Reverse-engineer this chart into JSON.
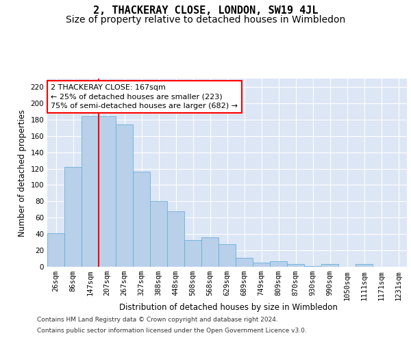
{
  "title": "2, THACKERAY CLOSE, LONDON, SW19 4JL",
  "subtitle": "Size of property relative to detached houses in Wimbledon",
  "xlabel": "Distribution of detached houses by size in Wimbledon",
  "ylabel": "Number of detached properties",
  "footer_line1": "Contains HM Land Registry data © Crown copyright and database right 2024.",
  "footer_line2": "Contains public sector information licensed under the Open Government Licence v3.0.",
  "bin_labels": [
    "26sqm",
    "86sqm",
    "147sqm",
    "207sqm",
    "267sqm",
    "327sqm",
    "388sqm",
    "448sqm",
    "508sqm",
    "568sqm",
    "629sqm",
    "689sqm",
    "749sqm",
    "809sqm",
    "870sqm",
    "930sqm",
    "990sqm",
    "1050sqm",
    "1111sqm",
    "1171sqm",
    "1231sqm"
  ],
  "bar_values": [
    41,
    122,
    184,
    184,
    174,
    116,
    80,
    68,
    33,
    36,
    28,
    11,
    5,
    7,
    3,
    1,
    3,
    0,
    3,
    0,
    0
  ],
  "bar_color": "#b8d0ea",
  "bar_edge_color": "#6aaed6",
  "vline_x": 2.5,
  "vline_color": "red",
  "annotation_text": "2 THACKERAY CLOSE: 167sqm\n← 25% of detached houses are smaller (223)\n75% of semi-detached houses are larger (682) →",
  "annotation_box_color": "white",
  "annotation_box_edge": "red",
  "ylim": [
    0,
    230
  ],
  "yticks": [
    0,
    20,
    40,
    60,
    80,
    100,
    120,
    140,
    160,
    180,
    200,
    220
  ],
  "plot_bg_color": "#dce6f5",
  "title_fontsize": 11,
  "subtitle_fontsize": 10,
  "axis_label_fontsize": 8.5,
  "tick_fontsize": 7.5,
  "annotation_fontsize": 8
}
